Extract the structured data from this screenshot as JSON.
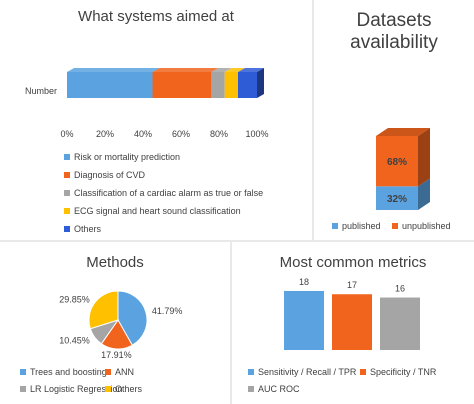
{
  "colors": {
    "blue": "#5ba3e0",
    "orange": "#f0641e",
    "gray": "#a5a5a5",
    "yellow": "#ffc000",
    "darkblue": "#2e5bd6"
  },
  "chart_data": [
    {
      "type": "bar",
      "orientation": "horizontal-stacked",
      "title": "What systems aimed at",
      "category": "Number",
      "x_ticks": [
        "0%",
        "20%",
        "40%",
        "60%",
        "80%",
        "100%"
      ],
      "xlim": [
        0,
        100
      ],
      "series": [
        {
          "name": "Risk or mortality prediction",
          "value": 45,
          "color": "#5ba3e0"
        },
        {
          "name": "Diagnosis of CVD",
          "value": 31,
          "color": "#f0641e"
        },
        {
          "name": "Classification of a cardiac alarm as true or false",
          "value": 7,
          "color": "#a5a5a5"
        },
        {
          "name": "ECG signal and heart sound classification",
          "value": 7,
          "color": "#ffc000"
        },
        {
          "name": "Others",
          "value": 10,
          "color": "#2e5bd6"
        }
      ],
      "legend_position": "bottom"
    },
    {
      "type": "bar",
      "orientation": "vertical-stacked",
      "title": "Datasets availability",
      "series": [
        {
          "name": "published",
          "value": 32,
          "label": "32%",
          "color": "#5ba3e0"
        },
        {
          "name": "unpublished",
          "value": 68,
          "label": "68%",
          "color": "#f0641e"
        }
      ],
      "ylim": [
        0,
        100
      ],
      "legend_position": "bottom"
    },
    {
      "type": "pie",
      "title": "Methods",
      "slices": [
        {
          "name": "Trees and boosting",
          "value": 41.79,
          "label": "41.79%",
          "color": "#5ba3e0"
        },
        {
          "name": "ANN",
          "value": 17.91,
          "label": "17.91%",
          "color": "#f0641e"
        },
        {
          "name": "LR Logistic Regression",
          "value": 10.45,
          "label": "10.45%",
          "color": "#a5a5a5"
        },
        {
          "name": "Others",
          "value": 29.85,
          "label": "29.85%",
          "color": "#ffc000"
        }
      ],
      "legend_position": "bottom"
    },
    {
      "type": "bar",
      "title": "Most common metrics",
      "series": [
        {
          "name": "Sensitivity / Recall / TPR",
          "value": 18,
          "label": "18",
          "color": "#5ba3e0"
        },
        {
          "name": "Specificity / TNR",
          "value": 17,
          "label": "17",
          "color": "#f0641e"
        },
        {
          "name": "AUC ROC",
          "value": 16,
          "label": "16",
          "color": "#a5a5a5"
        }
      ],
      "legend_position": "bottom"
    }
  ]
}
